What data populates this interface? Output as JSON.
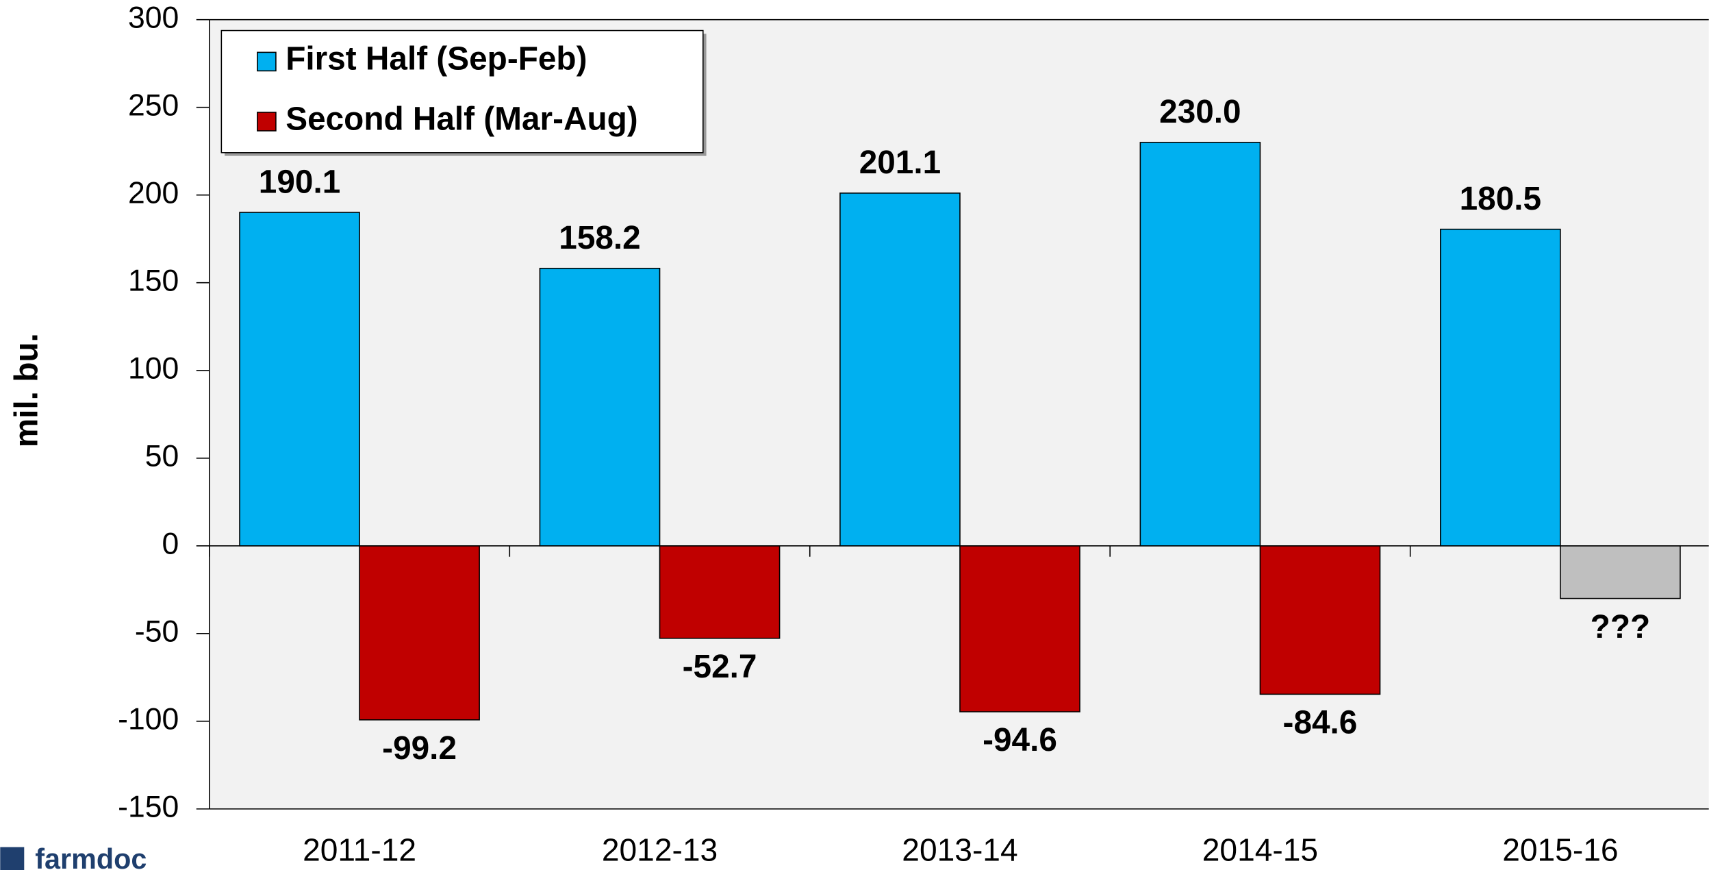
{
  "chart_data": {
    "type": "bar",
    "y_label": "mil. bu.",
    "logo": "farmdoc",
    "categories": [
      "2011-12",
      "2012-13",
      "2013-14",
      "2014-15",
      "2015-16"
    ],
    "series": [
      {
        "name": "First Half (Sep-Feb)",
        "color": "#00b0f0",
        "values": [
          190.1,
          158.2,
          201.1,
          230.0,
          180.5
        ],
        "value_labels": [
          "190.1",
          "158.2",
          "201.1",
          "230.0",
          "180.5"
        ]
      },
      {
        "name": "Second Half (Mar-Aug)",
        "color": "#c00000",
        "colors": [
          "#c00000",
          "#c00000",
          "#c00000",
          "#c00000",
          "#bfbfbf"
        ],
        "values": [
          -99.2,
          -52.7,
          -94.6,
          -84.6,
          -30
        ],
        "value_labels": [
          "-99.2",
          "-52.7",
          "-94.6",
          "-84.6",
          "???"
        ]
      }
    ],
    "ylim": [
      -150,
      300
    ],
    "yticks": [
      -150,
      -100,
      -50,
      0,
      50,
      100,
      150,
      200,
      250,
      300
    ],
    "grid": false,
    "legend": "upper left"
  }
}
